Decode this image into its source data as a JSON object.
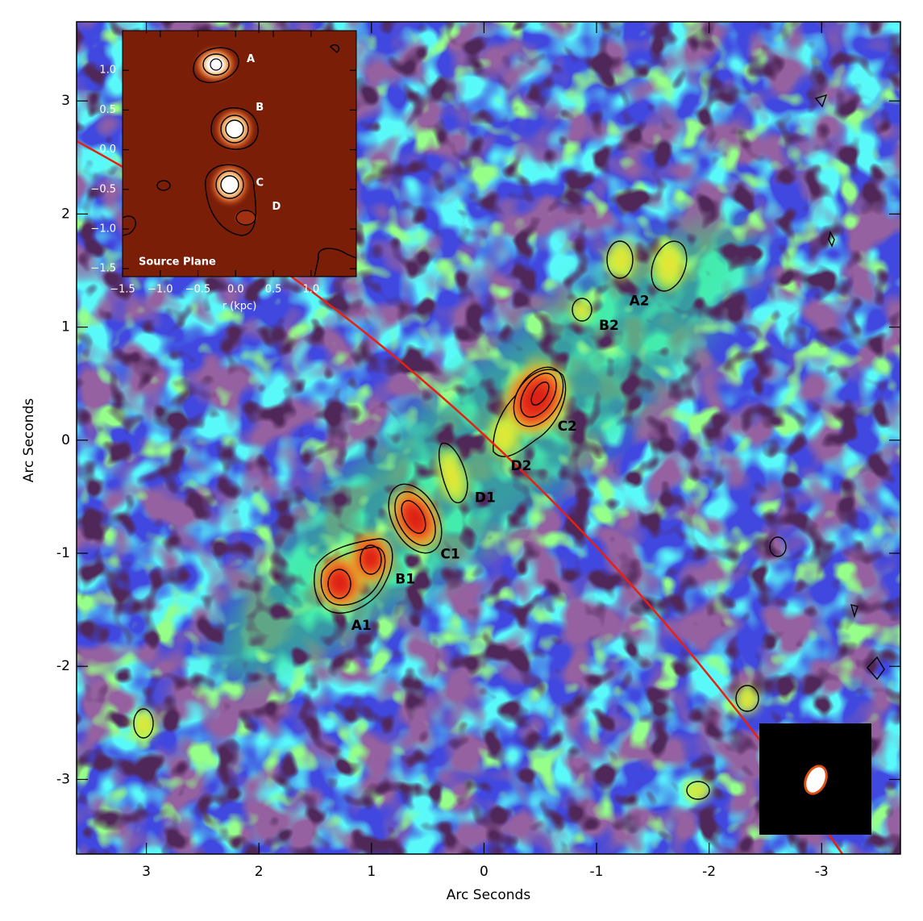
{
  "chart_data": [
    {
      "type": "image",
      "xlabel": "Arc Seconds",
      "ylabel": "Arc Seconds",
      "xlim": [
        3.62,
        -3.7
      ],
      "ylim": [
        -3.66,
        3.7
      ],
      "xticks": [
        3,
        2,
        1,
        0,
        -1,
        -2,
        -3
      ],
      "yticks": [
        -3,
        -2,
        -1,
        0,
        1,
        2,
        3
      ],
      "annotations": [
        {
          "text": "A1",
          "x": 1.09,
          "y": -1.64
        },
        {
          "text": "B1",
          "x": 0.7,
          "y": -1.23
        },
        {
          "text": "C1",
          "x": 0.3,
          "y": -1.01
        },
        {
          "text": "D1",
          "x": -0.01,
          "y": -0.51
        },
        {
          "text": "D2",
          "x": -0.33,
          "y": -0.23
        },
        {
          "text": "C2",
          "x": -0.74,
          "y": 0.12
        },
        {
          "text": "B2",
          "x": -1.11,
          "y": 1.01
        },
        {
          "text": "A2",
          "x": -1.38,
          "y": 1.23
        }
      ]
    },
    {
      "type": "image",
      "title": "Source Plane",
      "xlabel": "r (kpc)",
      "xlim": [
        -1.5,
        1.6
      ],
      "ylim": [
        -1.6,
        1.5
      ],
      "xticks": [
        {
          "value": -1.5,
          "label": "−1.5"
        },
        {
          "value": -1,
          "label": "−1.0"
        },
        {
          "value": -0.5,
          "label": "−0.5"
        },
        {
          "value": 0,
          "label": "0.0"
        },
        {
          "value": 0.5,
          "label": "0.5"
        },
        {
          "value": 1,
          "label": "1.0"
        }
      ],
      "yticks": [
        {
          "value": -1.5,
          "label": "−1.5"
        },
        {
          "value": -1,
          "label": "−1.0"
        },
        {
          "value": -0.5,
          "label": "−0.5"
        },
        {
          "value": 0,
          "label": "0.0"
        },
        {
          "value": 0.5,
          "label": "0.5"
        },
        {
          "value": 1,
          "label": "1.0"
        }
      ],
      "annotations": [
        {
          "text": "A",
          "x": 0.2,
          "y": 1.14
        },
        {
          "text": "B",
          "x": 0.32,
          "y": 0.53
        },
        {
          "text": "C",
          "x": 0.32,
          "y": -0.42
        },
        {
          "text": "D",
          "x": 0.54,
          "y": -0.72
        }
      ]
    }
  ]
}
